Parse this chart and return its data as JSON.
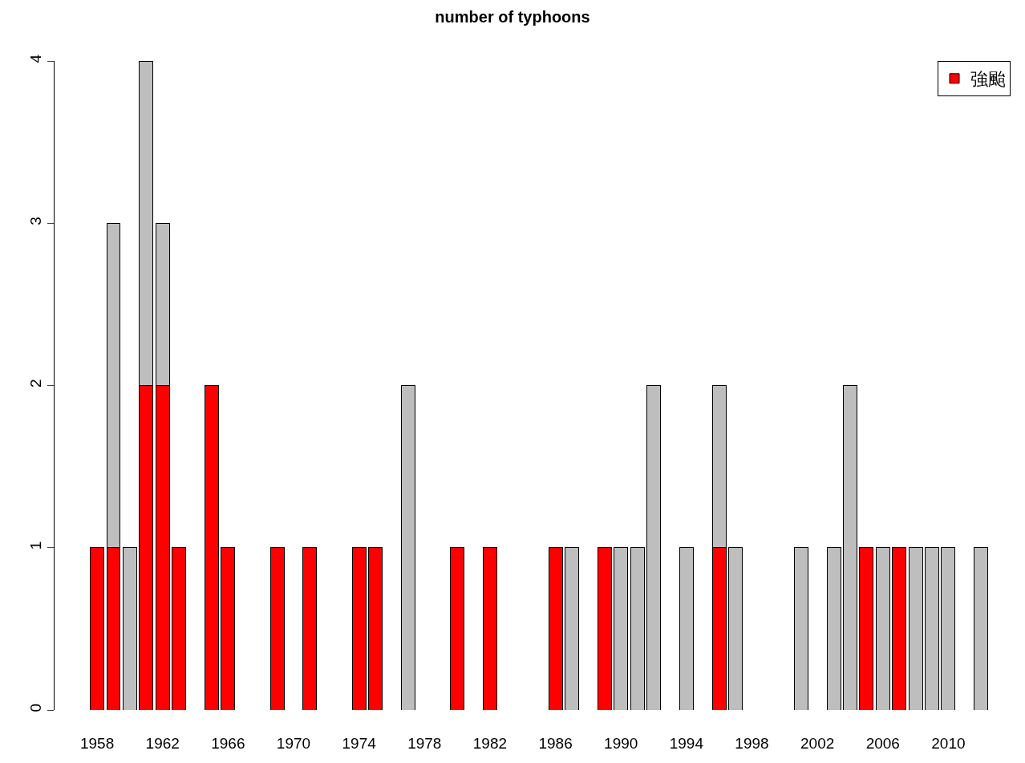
{
  "chart_data": {
    "type": "bar",
    "title": "number of typhoons",
    "stacked": true,
    "legend": "top right",
    "grid": false,
    "ylim": [
      0,
      4
    ],
    "yticks": [
      0,
      1,
      2,
      3,
      4
    ],
    "categories": [
      "1958",
      null,
      null,
      null,
      "1962",
      null,
      null,
      null,
      "1966",
      null,
      null,
      null,
      "1970",
      null,
      null,
      null,
      "1974",
      null,
      null,
      null,
      "1978",
      null,
      null,
      null,
      "1982",
      null,
      null,
      null,
      "1986",
      null,
      null,
      null,
      "1990",
      null,
      null,
      null,
      "1994",
      null,
      null,
      null,
      "1998",
      null,
      null,
      null,
      "2002",
      null,
      null,
      null,
      "2006",
      null,
      null,
      null,
      "2010",
      null,
      null,
      null
    ],
    "series": [
      {
        "name": "強颱",
        "color": "#ff0000",
        "values": [
          1,
          1,
          0,
          2,
          2,
          1,
          0,
          2,
          1,
          0,
          0,
          1,
          0,
          1,
          0,
          0,
          1,
          1,
          0,
          0,
          0,
          0,
          1,
          0,
          1,
          0,
          0,
          0,
          1,
          0,
          0,
          1,
          0,
          0,
          0,
          0,
          0,
          0,
          1,
          0,
          0,
          0,
          0,
          0,
          0,
          0,
          0,
          1,
          0,
          1,
          0,
          0,
          0,
          0,
          0,
          0
        ]
      },
      {
        "color": "#bebebe",
        "values": [
          0,
          2,
          1,
          2,
          1,
          0,
          0,
          0,
          0,
          0,
          0,
          0,
          0,
          0,
          0,
          0,
          0,
          0,
          0,
          2,
          0,
          0,
          0,
          0,
          0,
          0,
          0,
          0,
          0,
          1,
          0,
          0,
          1,
          1,
          2,
          0,
          1,
          0,
          1,
          1,
          0,
          0,
          0,
          1,
          0,
          1,
          2,
          0,
          1,
          0,
          1,
          1,
          1,
          0,
          1,
          0
        ]
      }
    ]
  }
}
